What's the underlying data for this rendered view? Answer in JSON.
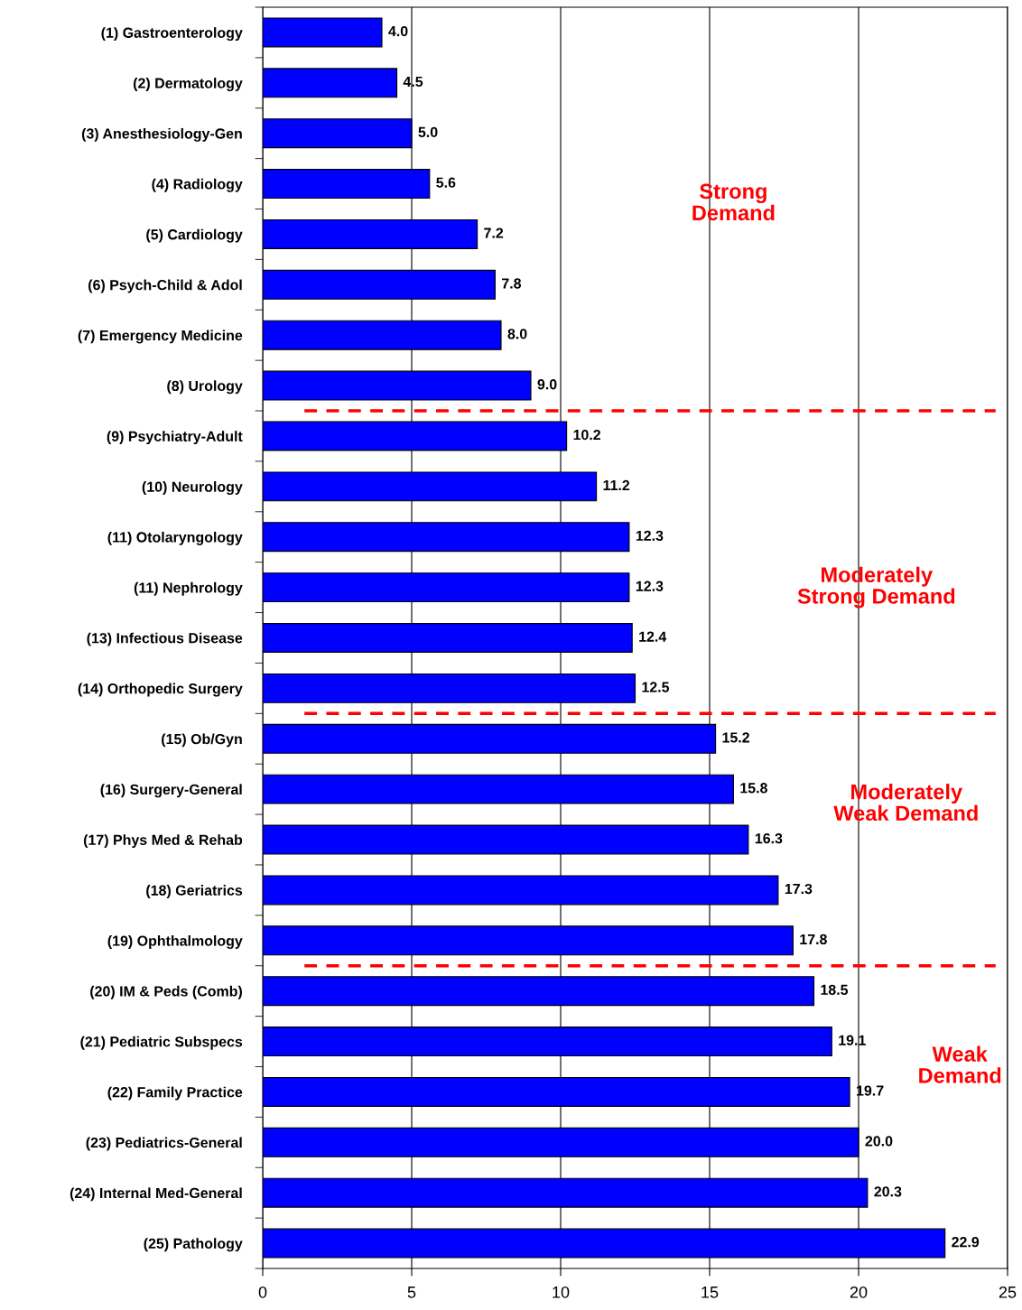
{
  "chart_data": {
    "type": "bar",
    "orientation": "horizontal",
    "categories": [
      "(1) Gastroenterology",
      "(2) Dermatology",
      "(3) Anesthesiology-Gen",
      "(4) Radiology",
      "(5) Cardiology",
      "(6) Psych-Child & Adol",
      "(7) Emergency Medicine",
      "(8) Urology",
      "(9) Psychiatry-Adult",
      "(10) Neurology",
      "(11) Otolaryngology",
      "(11) Nephrology",
      "(13) Infectious Disease",
      "(14) Orthopedic Surgery",
      "(15) Ob/Gyn",
      "(16) Surgery-General",
      "(17) Phys Med & Rehab",
      "(18) Geriatrics",
      "(19) Ophthalmology",
      "(20) IM & Peds (Comb)",
      "(21) Pediatric Subspecs",
      "(22) Family Practice",
      "(23) Pediatrics-General",
      "(24) Internal Med-General",
      "(25) Pathology"
    ],
    "values": [
      4.0,
      4.5,
      5.0,
      5.6,
      7.2,
      7.8,
      8.0,
      9.0,
      10.2,
      11.2,
      12.3,
      12.3,
      12.4,
      12.5,
      15.2,
      15.8,
      16.3,
      17.3,
      17.8,
      18.5,
      19.1,
      19.7,
      20.0,
      20.3,
      22.9
    ],
    "color": "#0000ff",
    "value_labels": [
      "4.0",
      "4.5",
      "5.0",
      "5.6",
      "7.2",
      "7.8",
      "8.0",
      "9.0",
      "10.2",
      "11.2",
      "12.3",
      "12.3",
      "12.4",
      "12.5",
      "15.2",
      "15.8",
      "16.3",
      "17.3",
      "17.8",
      "18.5",
      "19.1",
      "19.7",
      "20.0",
      "20.3",
      "22.9"
    ],
    "xlim": [
      0,
      25
    ],
    "xticks": [
      0,
      5,
      10,
      15,
      20,
      25
    ],
    "grid": "x",
    "annotations": [
      "Strong\nDemand",
      "Moderately\nStrong Demand",
      "Moderately\nWeak Demand",
      "Weak\nDemand"
    ]
  }
}
